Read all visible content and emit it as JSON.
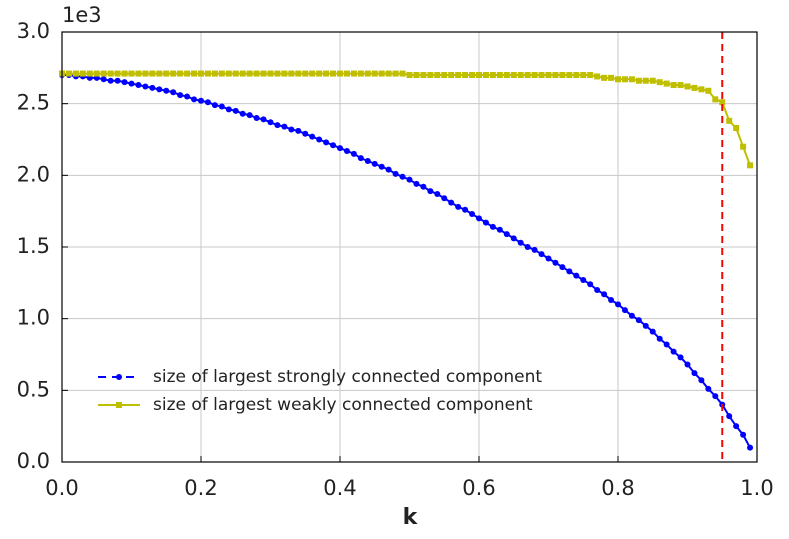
{
  "chart_data": {
    "type": "line",
    "y_offset_label": "1e3",
    "xlabel": "k",
    "x": [
      0,
      0.01,
      0.02,
      0.03,
      0.04,
      0.05,
      0.06,
      0.07,
      0.08,
      0.09,
      0.1,
      0.11,
      0.12,
      0.13,
      0.14,
      0.15,
      0.16,
      0.17,
      0.18,
      0.19,
      0.2,
      0.21,
      0.22,
      0.23,
      0.24,
      0.25,
      0.26,
      0.27,
      0.28,
      0.29,
      0.3,
      0.31,
      0.32,
      0.33,
      0.34,
      0.35,
      0.36,
      0.37,
      0.38,
      0.39,
      0.4,
      0.41,
      0.42,
      0.43,
      0.44,
      0.45,
      0.46,
      0.47,
      0.48,
      0.49,
      0.5,
      0.51,
      0.52,
      0.53,
      0.54,
      0.55,
      0.56,
      0.57,
      0.58,
      0.59,
      0.6,
      0.61,
      0.62,
      0.63,
      0.64,
      0.65,
      0.66,
      0.67,
      0.68,
      0.69,
      0.7,
      0.71,
      0.72,
      0.73,
      0.74,
      0.75,
      0.76,
      0.77,
      0.78,
      0.79,
      0.8,
      0.81,
      0.82,
      0.83,
      0.84,
      0.85,
      0.86,
      0.87,
      0.88,
      0.89,
      0.9,
      0.91,
      0.92,
      0.93,
      0.94,
      0.95,
      0.96,
      0.97,
      0.98,
      0.99
    ],
    "series": [
      {
        "name": "size of largest strongly connected component",
        "color": "#0000ff",
        "marker": "circle",
        "values": [
          2.7,
          2.7,
          2.69,
          2.69,
          2.68,
          2.68,
          2.67,
          2.66,
          2.66,
          2.65,
          2.64,
          2.63,
          2.62,
          2.61,
          2.6,
          2.59,
          2.58,
          2.56,
          2.55,
          2.53,
          2.52,
          2.51,
          2.49,
          2.48,
          2.46,
          2.45,
          2.43,
          2.42,
          2.4,
          2.39,
          2.37,
          2.35,
          2.34,
          2.32,
          2.31,
          2.29,
          2.27,
          2.25,
          2.23,
          2.21,
          2.19,
          2.17,
          2.15,
          2.12,
          2.1,
          2.08,
          2.06,
          2.04,
          2.01,
          1.99,
          1.97,
          1.94,
          1.92,
          1.89,
          1.87,
          1.84,
          1.81,
          1.78,
          1.76,
          1.73,
          1.7,
          1.67,
          1.64,
          1.62,
          1.59,
          1.56,
          1.53,
          1.5,
          1.48,
          1.45,
          1.42,
          1.39,
          1.36,
          1.33,
          1.3,
          1.27,
          1.24,
          1.2,
          1.17,
          1.13,
          1.1,
          1.06,
          1.02,
          0.99,
          0.95,
          0.91,
          0.86,
          0.82,
          0.77,
          0.73,
          0.68,
          0.62,
          0.57,
          0.51,
          0.46,
          0.4,
          0.32,
          0.25,
          0.19,
          0.1
        ]
      },
      {
        "name": "size of largest weakly connected component",
        "color": "#bfbf00",
        "marker": "square",
        "values": [
          2.71,
          2.71,
          2.71,
          2.71,
          2.71,
          2.71,
          2.71,
          2.71,
          2.71,
          2.71,
          2.71,
          2.71,
          2.71,
          2.71,
          2.71,
          2.71,
          2.71,
          2.71,
          2.71,
          2.71,
          2.71,
          2.71,
          2.71,
          2.71,
          2.71,
          2.71,
          2.71,
          2.71,
          2.71,
          2.71,
          2.71,
          2.71,
          2.71,
          2.71,
          2.71,
          2.71,
          2.71,
          2.71,
          2.71,
          2.71,
          2.71,
          2.71,
          2.71,
          2.71,
          2.71,
          2.71,
          2.71,
          2.71,
          2.71,
          2.71,
          2.7,
          2.7,
          2.7,
          2.7,
          2.7,
          2.7,
          2.7,
          2.7,
          2.7,
          2.7,
          2.7,
          2.7,
          2.7,
          2.7,
          2.7,
          2.7,
          2.7,
          2.7,
          2.7,
          2.7,
          2.7,
          2.7,
          2.7,
          2.7,
          2.7,
          2.7,
          2.7,
          2.69,
          2.68,
          2.68,
          2.67,
          2.67,
          2.67,
          2.66,
          2.66,
          2.66,
          2.65,
          2.64,
          2.63,
          2.63,
          2.62,
          2.61,
          2.6,
          2.59,
          2.53,
          2.51,
          2.38,
          2.33,
          2.2,
          2.07
        ]
      }
    ],
    "vline": {
      "x": 0.95,
      "color": "#ff0000"
    },
    "xlim": [
      0,
      1
    ],
    "xticks": [
      {
        "value": 0,
        "label": "0.0"
      },
      0.2,
      0.4,
      0.6,
      0.8,
      {
        "value": 1,
        "label": "1.0"
      }
    ],
    "ylim": [
      0,
      3
    ],
    "yticks": [
      {
        "value": 0,
        "label": "0.0"
      },
      0.5,
      {
        "value": 1,
        "label": "1.0"
      },
      1.5,
      {
        "value": 2,
        "label": "2.0"
      },
      2.5,
      {
        "value": 3,
        "label": "3.0"
      }
    ],
    "grid": true,
    "legend": "lower left"
  }
}
